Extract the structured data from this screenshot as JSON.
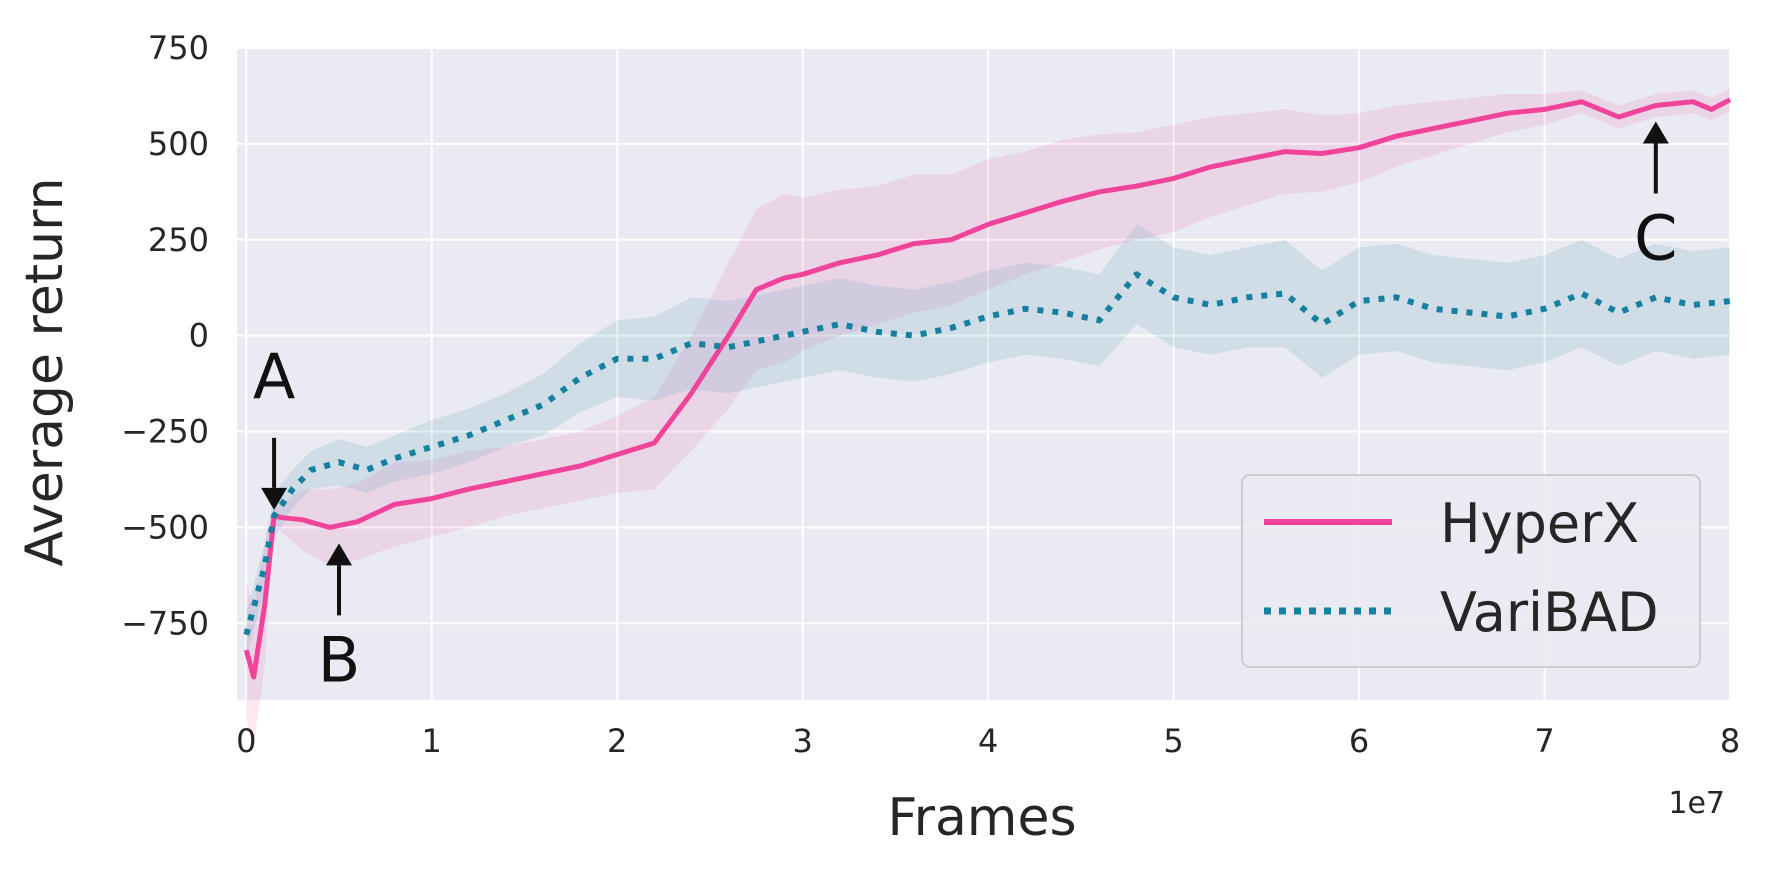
{
  "chart_data": {
    "type": "line",
    "title": "",
    "xlabel": "Frames",
    "ylabel": "Average return",
    "x_offset_label": "1e7",
    "xlim": [
      -0.05,
      8.0
    ],
    "ylim": [
      -950,
      750
    ],
    "xticks": [
      0,
      1,
      2,
      3,
      4,
      5,
      6,
      7,
      8
    ],
    "yticks": [
      750,
      500,
      250,
      0,
      -250,
      -500,
      -750
    ],
    "ytick_labels": [
      "750",
      "500",
      "250",
      "0",
      "−250",
      "−500",
      "−750"
    ],
    "grid": true,
    "legend_position": "lower-right",
    "background_color": "#eaeaf2",
    "series": [
      {
        "name": "HyperX",
        "color": "#f0449b",
        "style": "solid",
        "x": [
          0.0,
          0.04,
          0.1,
          0.15,
          0.2,
          0.3,
          0.45,
          0.6,
          0.8,
          1.0,
          1.2,
          1.4,
          1.6,
          1.8,
          2.0,
          2.2,
          2.4,
          2.6,
          2.75,
          2.9,
          3.0,
          3.2,
          3.4,
          3.6,
          3.8,
          4.0,
          4.2,
          4.4,
          4.6,
          4.8,
          5.0,
          5.2,
          5.4,
          5.6,
          5.8,
          6.0,
          6.2,
          6.4,
          6.6,
          6.8,
          7.0,
          7.2,
          7.4,
          7.6,
          7.8,
          7.9,
          8.0
        ],
        "y": [
          -820,
          -890,
          -700,
          -470,
          -475,
          -480,
          -500,
          -485,
          -440,
          -425,
          -400,
          -380,
          -360,
          -340,
          -310,
          -280,
          -150,
          0,
          120,
          150,
          160,
          190,
          210,
          240,
          250,
          290,
          320,
          350,
          375,
          390,
          410,
          440,
          460,
          480,
          475,
          490,
          520,
          540,
          560,
          580,
          590,
          610,
          570,
          600,
          610,
          590,
          615
        ],
        "band": [
          180,
          180,
          160,
          20,
          40,
          80,
          100,
          100,
          110,
          100,
          100,
          90,
          90,
          90,
          100,
          120,
          150,
          190,
          210,
          220,
          200,
          190,
          180,
          180,
          170,
          170,
          160,
          160,
          150,
          140,
          140,
          130,
          120,
          110,
          100,
          90,
          80,
          70,
          60,
          50,
          40,
          30,
          30,
          30,
          30,
          30,
          30
        ]
      },
      {
        "name": "VariBAD",
        "color": "#15809f",
        "style": "dotted",
        "x": [
          0.0,
          0.1,
          0.15,
          0.25,
          0.35,
          0.5,
          0.65,
          0.8,
          1.0,
          1.2,
          1.4,
          1.6,
          1.8,
          2.0,
          2.2,
          2.4,
          2.6,
          2.8,
          3.0,
          3.2,
          3.4,
          3.6,
          3.8,
          4.0,
          4.2,
          4.4,
          4.6,
          4.8,
          5.0,
          5.2,
          5.4,
          5.6,
          5.8,
          6.0,
          6.2,
          6.4,
          6.6,
          6.8,
          7.0,
          7.2,
          7.4,
          7.6,
          7.8,
          8.0
        ],
        "y": [
          -780,
          -600,
          -470,
          -400,
          -350,
          -330,
          -350,
          -320,
          -290,
          -260,
          -220,
          -180,
          -110,
          -60,
          -60,
          -20,
          -30,
          -10,
          10,
          30,
          10,
          0,
          20,
          50,
          70,
          60,
          40,
          160,
          100,
          80,
          100,
          110,
          30,
          90,
          100,
          70,
          60,
          50,
          70,
          110,
          60,
          100,
          80,
          90
        ],
        "band": [
          60,
          60,
          60,
          50,
          50,
          60,
          60,
          60,
          70,
          70,
          70,
          80,
          90,
          100,
          110,
          120,
          120,
          120,
          120,
          120,
          120,
          120,
          120,
          120,
          120,
          120,
          120,
          130,
          130,
          130,
          130,
          140,
          140,
          140,
          140,
          140,
          140,
          140,
          140,
          140,
          140,
          140,
          140,
          140
        ]
      }
    ],
    "annotations": [
      {
        "text": "A",
        "x": 0.15,
        "y": -470,
        "arrow": "down"
      },
      {
        "text": "B",
        "x": 0.5,
        "y": -500,
        "arrow": "up"
      },
      {
        "text": "C",
        "x": 7.6,
        "y": 600,
        "arrow": "up"
      }
    ]
  }
}
